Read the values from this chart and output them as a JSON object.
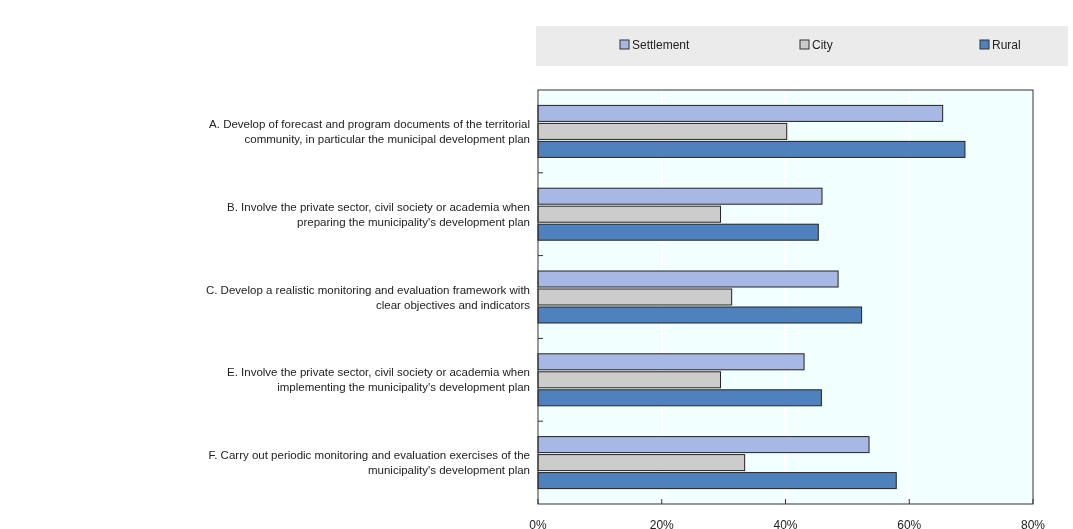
{
  "chart_data": {
    "type": "bar",
    "orientation": "horizontal",
    "categories": [
      "A. Develop of forecast and program documents of the territorial community, in particular the municipal development plan",
      "B. Involve the private sector, civil society or academia when preparing the municipality's development plan",
      "C. Develop a realistic monitoring and evaluation framework with clear objectives and indicators",
      "E. Involve the private sector, civil society or academia when implementing the municipality's development plan",
      "F. Carry out periodic monitoring and evaluation exercises of the municipality's development plan"
    ],
    "series": [
      {
        "name": "Settlement",
        "color": "#a8b8e4",
        "values": [
          65.4,
          45.9,
          48.5,
          43.0,
          53.5
        ]
      },
      {
        "name": "City",
        "color": "#cccccc",
        "values": [
          40.2,
          29.5,
          31.3,
          29.5,
          33.4
        ]
      },
      {
        "name": "Rural",
        "color": "#4f81bd",
        "values": [
          69.0,
          45.3,
          52.3,
          45.8,
          57.9
        ]
      }
    ],
    "xlim": [
      0,
      80
    ],
    "xticks": [
      {
        "value": 0,
        "label": "0%"
      },
      {
        "value": 20,
        "label": "20%"
      },
      {
        "value": 40,
        "label": "40%"
      },
      {
        "value": 60,
        "label": "60%"
      },
      {
        "value": 80,
        "label": "80%"
      }
    ],
    "grid": "x",
    "legend": "top"
  }
}
